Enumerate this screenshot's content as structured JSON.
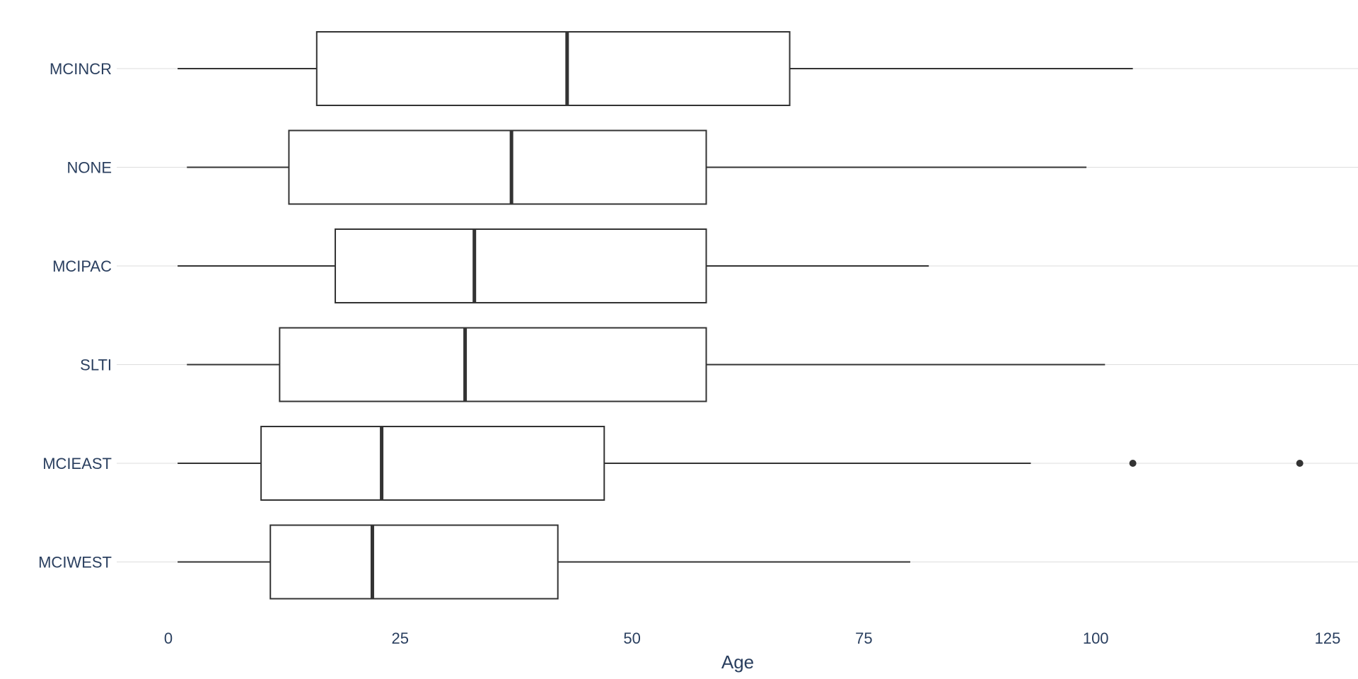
{
  "chart_data": {
    "type": "box",
    "orientation": "horizontal",
    "title": "",
    "xlabel": "Age",
    "ylabel": "",
    "xlim": [
      -4.5,
      128.5
    ],
    "x_ticks": [
      0,
      25,
      50,
      75,
      100,
      125
    ],
    "grid": "horizontal gridlines at each category",
    "legend": "none",
    "categories_top_to_bottom": [
      "MCINCR",
      "NONE",
      "MCIPAC",
      "SLTI",
      "MCIEAST",
      "MCIWEST"
    ],
    "series": [
      {
        "category": "MCINCR",
        "min": 1,
        "q1": 16,
        "median": 43,
        "q3": 67,
        "max": 104,
        "outliers": []
      },
      {
        "category": "NONE",
        "min": 2,
        "q1": 13,
        "median": 37,
        "q3": 58,
        "max": 99,
        "outliers": []
      },
      {
        "category": "MCIPAC",
        "min": 1,
        "q1": 18,
        "median": 33,
        "q3": 58,
        "max": 82,
        "outliers": []
      },
      {
        "category": "SLTI",
        "min": 2,
        "q1": 12,
        "median": 32,
        "q3": 58,
        "max": 101,
        "outliers": []
      },
      {
        "category": "MCIEAST",
        "min": 1,
        "q1": 10,
        "median": 23,
        "q3": 47,
        "max": 93,
        "outliers": [
          104,
          122
        ]
      },
      {
        "category": "MCIWEST",
        "min": 1,
        "q1": 11,
        "median": 22,
        "q3": 42,
        "max": 80,
        "outliers": []
      }
    ],
    "colors": {
      "box_stroke": "#333333",
      "box_fill": "#ffffff",
      "grid": "#dddddd",
      "text": "#2a3f5f",
      "outlier": "#333333"
    }
  }
}
